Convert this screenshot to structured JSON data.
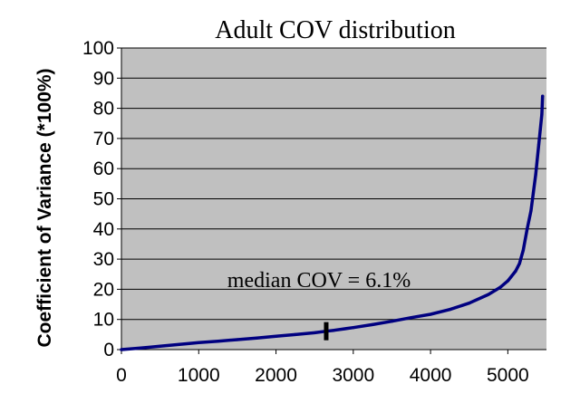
{
  "chart_data": {
    "type": "scatter",
    "title": "Adult COV distribution",
    "xlabel": "",
    "ylabel": "Coefficient of Variance (*100%)",
    "xlim": [
      0,
      5500
    ],
    "ylim": [
      0,
      100
    ],
    "xticks": [
      0,
      1000,
      2000,
      3000,
      4000,
      5000
    ],
    "yticks": [
      0,
      10,
      20,
      30,
      40,
      50,
      60,
      70,
      80,
      90,
      100
    ],
    "grid": "horizontal",
    "legend": "none",
    "background_color": "#c0c0c0",
    "series_color": "#000080",
    "series": [
      {
        "x": [
          0,
          250,
          500,
          750,
          1000,
          1250,
          1500,
          1750,
          2000,
          2250,
          2500,
          2650,
          2750,
          3000,
          3250,
          3500,
          3750,
          4000,
          4250,
          4500,
          4750,
          4900,
          5000,
          5100,
          5150,
          5200,
          5250,
          5300,
          5330,
          5360,
          5380,
          5400,
          5420,
          5440,
          5450
        ],
        "y": [
          0,
          0.5,
          1.1,
          1.7,
          2.3,
          2.8,
          3.3,
          3.8,
          4.4,
          5.0,
          5.6,
          6.1,
          6.4,
          7.3,
          8.3,
          9.4,
          10.6,
          11.7,
          13.3,
          15.4,
          18.3,
          20.6,
          22.8,
          26.0,
          28.5,
          33.0,
          40.0,
          46.0,
          52.0,
          58.0,
          63.0,
          68.0,
          73.0,
          78.0,
          84.0
        ]
      }
    ],
    "annotations": [
      {
        "text": "median COV = 6.1%",
        "x": 2650,
        "y": 6.1,
        "marker": "tick"
      }
    ]
  }
}
